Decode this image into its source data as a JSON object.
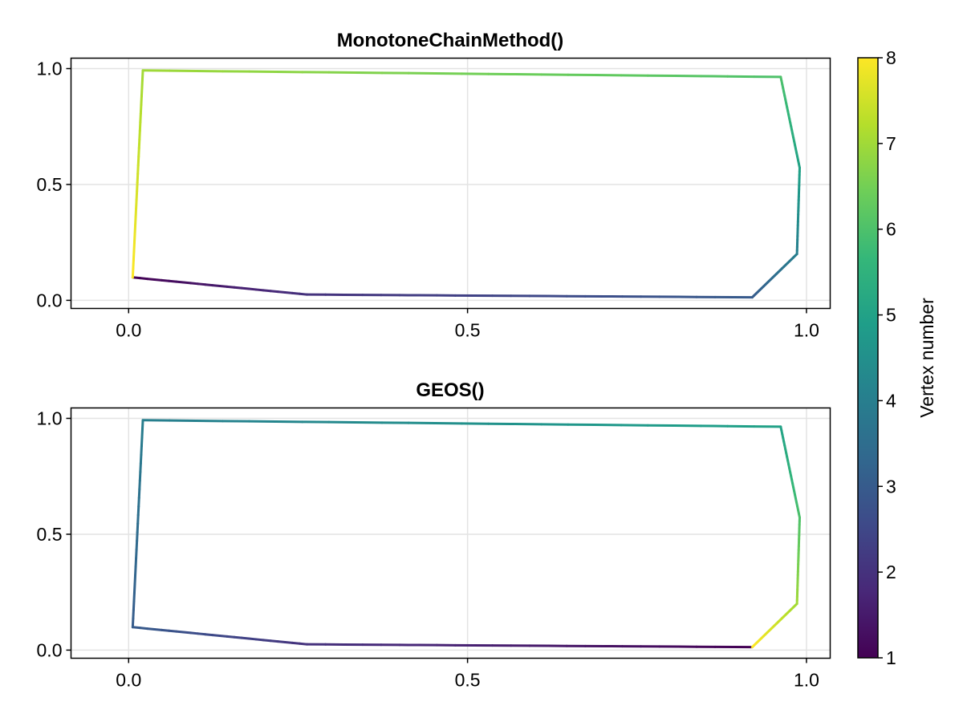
{
  "chart_data": {
    "colorbar": {
      "label": "Vertex number",
      "range": [
        1,
        8
      ],
      "ticks": [
        1,
        2,
        3,
        4,
        5,
        6,
        7,
        8
      ],
      "colormap": "viridis",
      "colormap_stops": [
        "#440154",
        "#482878",
        "#3e4a89",
        "#31688e",
        "#26828e",
        "#1f9e89",
        "#35b779",
        "#6ece58",
        "#b5de2b",
        "#fde725"
      ]
    },
    "panels": [
      {
        "type": "line",
        "title": "MonotoneChainMethod()",
        "xlim": [
          -0.085,
          1.035
        ],
        "ylim": [
          -0.035,
          1.045
        ],
        "xticks": [
          "0.0",
          "0.5",
          "1.0"
        ],
        "xtick_values": [
          0,
          0.5,
          1
        ],
        "yticks": [
          "0.0",
          "0.5",
          "1.0"
        ],
        "ytick_values": [
          0,
          0.5,
          1
        ],
        "grid": true,
        "points": [
          {
            "x": 0.006,
            "y": 0.099,
            "vertex": 1
          },
          {
            "x": 0.263,
            "y": 0.025,
            "vertex": 2
          },
          {
            "x": 0.92,
            "y": 0.013,
            "vertex": 3
          },
          {
            "x": 0.986,
            "y": 0.2,
            "vertex": 4
          },
          {
            "x": 0.99,
            "y": 0.572,
            "vertex": 5
          },
          {
            "x": 0.962,
            "y": 0.964,
            "vertex": 6
          },
          {
            "x": 0.021,
            "y": 0.992,
            "vertex": 7
          },
          {
            "x": 0.006,
            "y": 0.099,
            "vertex": 8
          }
        ]
      },
      {
        "type": "line",
        "title": "GEOS()",
        "xlim": [
          -0.085,
          1.035
        ],
        "ylim": [
          -0.035,
          1.045
        ],
        "xticks": [
          "0.0",
          "0.5",
          "1.0"
        ],
        "xtick_values": [
          0,
          0.5,
          1
        ],
        "yticks": [
          "0.0",
          "0.5",
          "1.0"
        ],
        "ytick_values": [
          0,
          0.5,
          1
        ],
        "grid": true,
        "points": [
          {
            "x": 0.92,
            "y": 0.013,
            "vertex": 1
          },
          {
            "x": 0.263,
            "y": 0.025,
            "vertex": 2
          },
          {
            "x": 0.006,
            "y": 0.099,
            "vertex": 3
          },
          {
            "x": 0.021,
            "y": 0.992,
            "vertex": 4
          },
          {
            "x": 0.962,
            "y": 0.964,
            "vertex": 5
          },
          {
            "x": 0.99,
            "y": 0.572,
            "vertex": 6
          },
          {
            "x": 0.986,
            "y": 0.2,
            "vertex": 7
          },
          {
            "x": 0.92,
            "y": 0.013,
            "vertex": 8
          }
        ]
      }
    ]
  }
}
